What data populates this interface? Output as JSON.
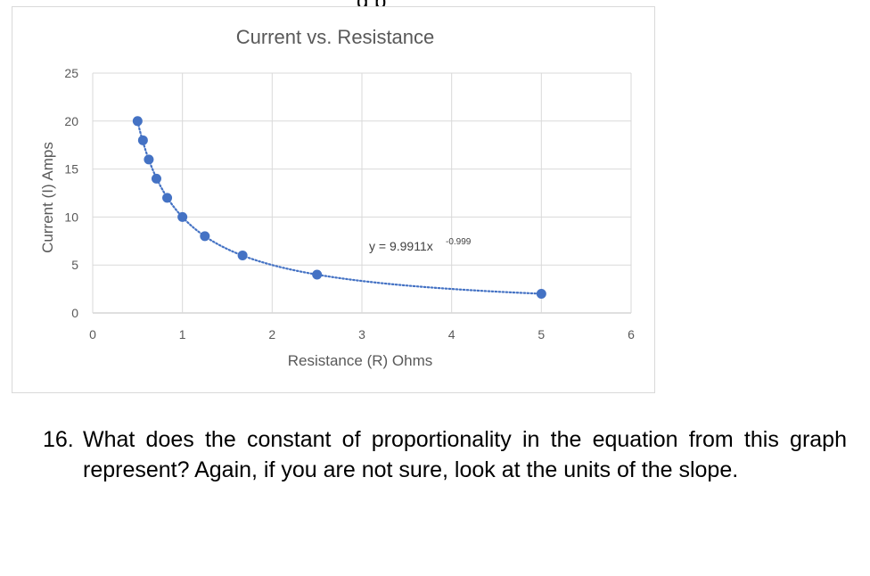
{
  "top_cutoff_text": "g p",
  "chart_data": {
    "type": "scatter",
    "title": "Current vs. Resistance",
    "xlabel": "Resistance (R) Ohms",
    "ylabel": "Current (I) Amps",
    "xlim": [
      0,
      6
    ],
    "ylim": [
      0,
      25
    ],
    "xticks": [
      0,
      1,
      2,
      3,
      4,
      5,
      6
    ],
    "yticks": [
      0,
      5,
      10,
      15,
      20,
      25
    ],
    "grid": true,
    "marker_color": "#4472c4",
    "points": [
      {
        "x": 0.5,
        "y": 20
      },
      {
        "x": 0.56,
        "y": 18
      },
      {
        "x": 0.625,
        "y": 16
      },
      {
        "x": 0.71,
        "y": 14
      },
      {
        "x": 0.83,
        "y": 12
      },
      {
        "x": 1.0,
        "y": 10
      },
      {
        "x": 1.25,
        "y": 8
      },
      {
        "x": 1.67,
        "y": 6
      },
      {
        "x": 2.5,
        "y": 4
      },
      {
        "x": 5.0,
        "y": 2
      }
    ],
    "trendline": {
      "type": "power",
      "coefficient": 9.9911,
      "exponent": -0.999,
      "style": "dotted",
      "label_prefix": "y = 9.9911x",
      "label_exponent": "-0.999"
    }
  },
  "question": {
    "number": "16.",
    "text": "What does the constant of proportionality in the equation from this graph represent? Again, if you are not sure, look at the units of the slope."
  }
}
